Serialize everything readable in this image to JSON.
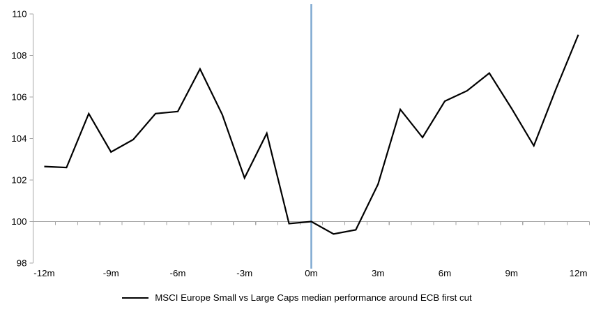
{
  "chart_data": {
    "type": "line",
    "title": "",
    "legend": "MSCI Europe Small vs Large Caps median performance around ECB first cut",
    "grid": "off",
    "legend_position": "bottom-center",
    "xlim": [
      -12.5,
      12.5
    ],
    "ylim": [
      98,
      110
    ],
    "y_ticks": [
      98,
      100,
      102,
      104,
      106,
      108,
      110
    ],
    "x_tick_months": [
      -12,
      -9,
      -6,
      -3,
      0,
      3,
      6,
      9,
      12
    ],
    "x_tick_labels": [
      "-12m",
      "-9m",
      "-6m",
      "-3m",
      "0m",
      "3m",
      "6m",
      "9m",
      "12m"
    ],
    "category_boundaries": 25,
    "reference_line_y": 100,
    "event_line_x": 0,
    "x_months": [
      -12,
      -11,
      -10,
      -9,
      -8,
      -7,
      -6,
      -5,
      -4,
      -3,
      -2,
      -1,
      0,
      1,
      2,
      3,
      4,
      5,
      6,
      7,
      8,
      9,
      10,
      11,
      12
    ],
    "series": [
      {
        "name": "MSCI Europe Small vs Large Caps median performance around ECB first cut",
        "color": "#000000",
        "values": [
          102.65,
          102.6,
          105.2,
          103.35,
          103.95,
          105.2,
          105.3,
          107.35,
          105.15,
          102.1,
          104.25,
          99.9,
          100.0,
          99.4,
          99.6,
          101.8,
          105.4,
          104.05,
          105.8,
          106.3,
          107.15,
          105.45,
          103.65,
          106.4,
          109.0
        ]
      }
    ],
    "colors": {
      "series": "#000000",
      "axis": "#a6a6a6",
      "reference_line": "#a6a6a6",
      "event_line": "#7fa9d1",
      "label_text": "#000000"
    }
  }
}
